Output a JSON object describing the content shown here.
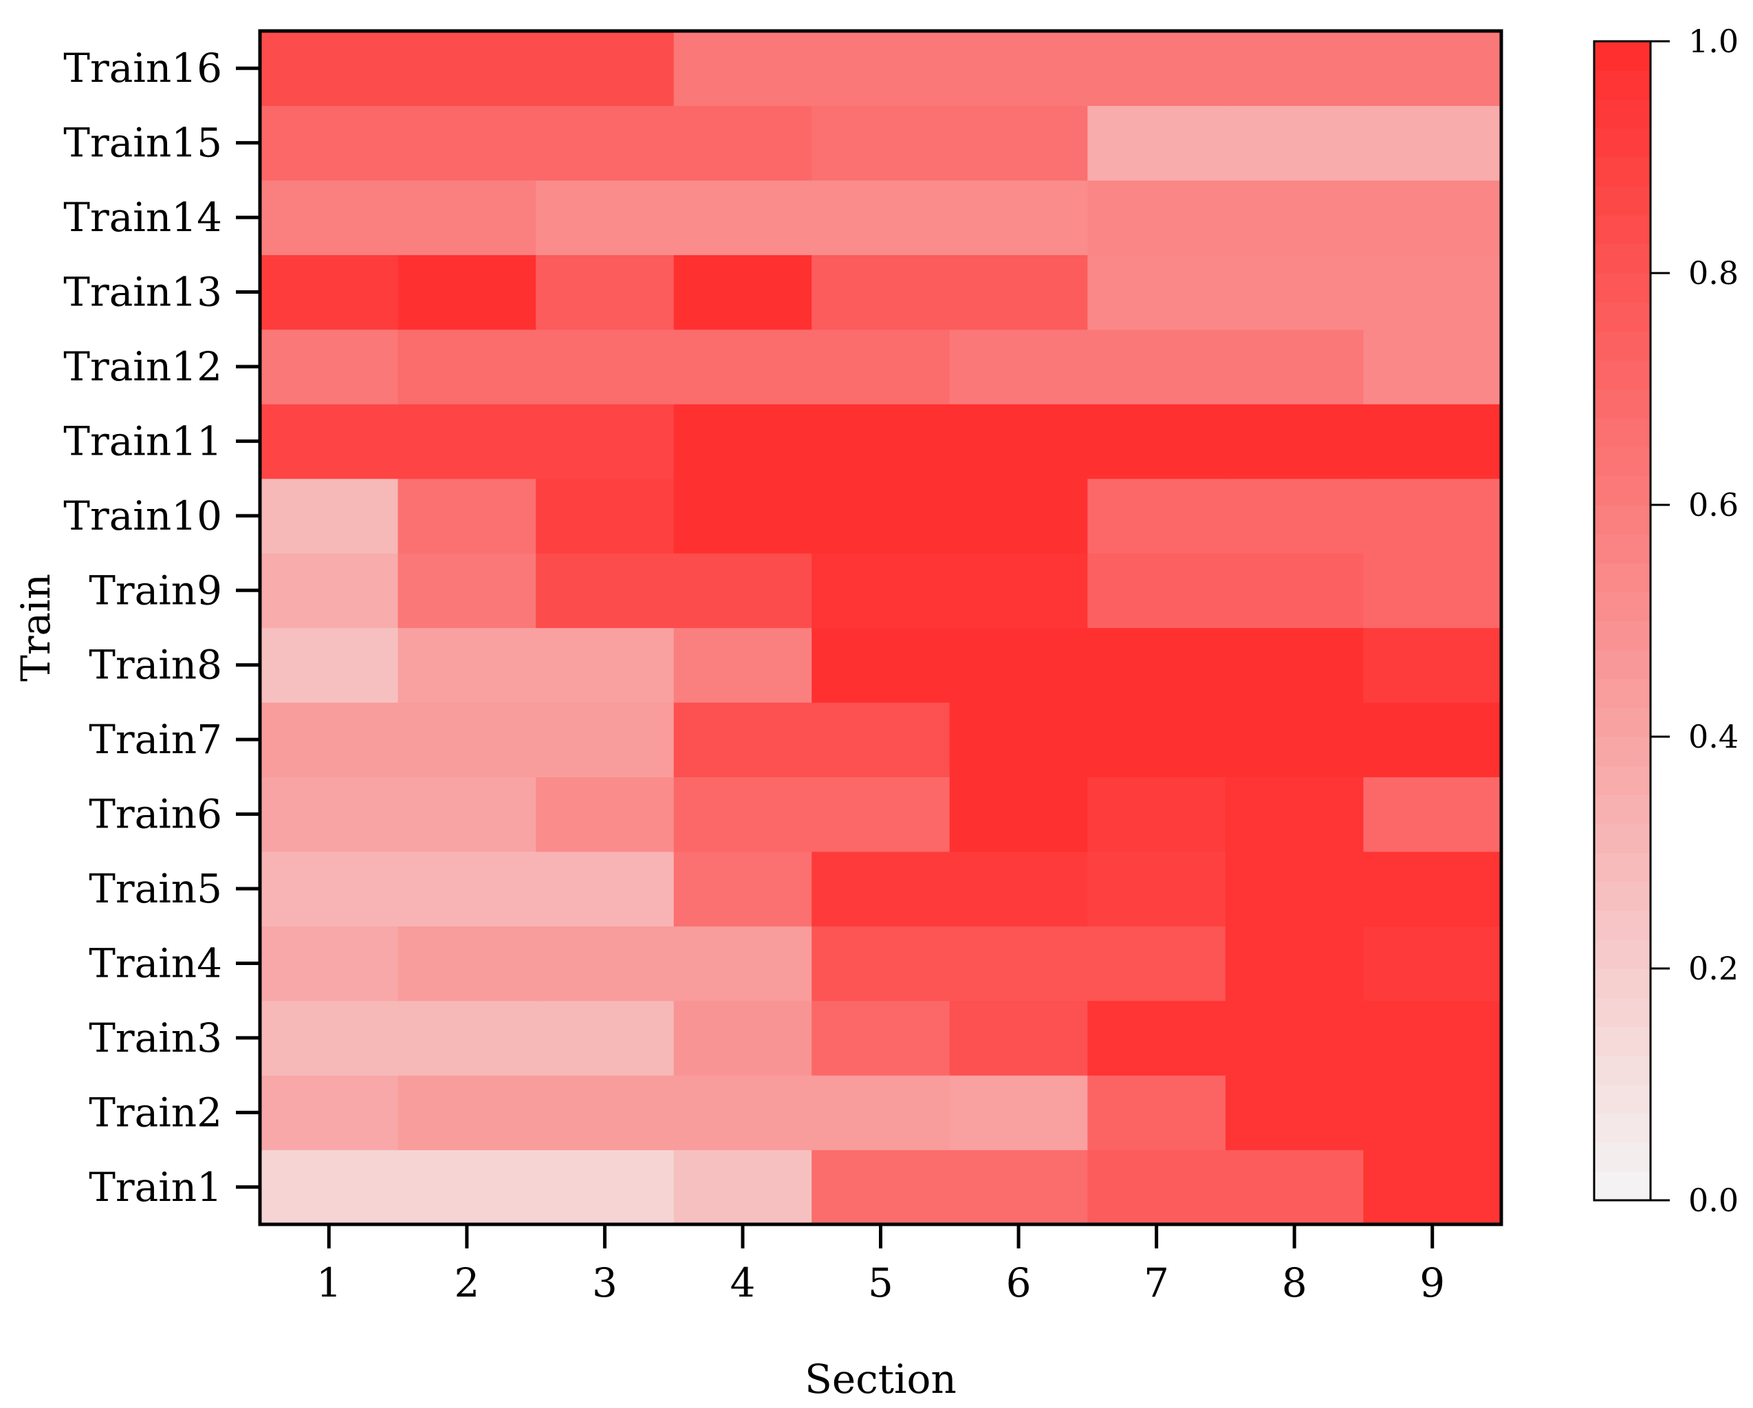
{
  "chart_data": {
    "type": "heatmap",
    "title": "",
    "xlabel": "Section",
    "ylabel": "Train",
    "x_categories": [
      "1",
      "2",
      "3",
      "4",
      "5",
      "6",
      "7",
      "8",
      "9"
    ],
    "y_categories": [
      "Train1",
      "Train2",
      "Train3",
      "Train4",
      "Train5",
      "Train6",
      "Train7",
      "Train8",
      "Train9",
      "Train10",
      "Train11",
      "Train12",
      "Train13",
      "Train14",
      "Train15",
      "Train16"
    ],
    "values": [
      [
        0.16,
        0.16,
        0.16,
        0.26,
        0.68,
        0.68,
        0.76,
        0.76,
        0.96
      ],
      [
        0.38,
        0.44,
        0.44,
        0.44,
        0.44,
        0.42,
        0.72,
        0.96,
        0.96
      ],
      [
        0.3,
        0.3,
        0.3,
        0.48,
        0.7,
        0.82,
        0.96,
        0.96,
        0.96
      ],
      [
        0.38,
        0.44,
        0.44,
        0.44,
        0.8,
        0.8,
        0.8,
        0.96,
        0.93
      ],
      [
        0.32,
        0.32,
        0.32,
        0.66,
        0.93,
        0.93,
        0.9,
        0.96,
        0.96
      ],
      [
        0.4,
        0.4,
        0.52,
        0.7,
        0.7,
        0.98,
        0.92,
        0.96,
        0.7
      ],
      [
        0.44,
        0.44,
        0.44,
        0.82,
        0.82,
        0.98,
        0.98,
        0.98,
        0.98
      ],
      [
        0.26,
        0.42,
        0.42,
        0.58,
        0.98,
        0.98,
        0.98,
        0.98,
        0.92
      ],
      [
        0.36,
        0.62,
        0.84,
        0.84,
        0.96,
        0.96,
        0.74,
        0.74,
        0.7
      ],
      [
        0.3,
        0.66,
        0.9,
        0.98,
        0.98,
        0.98,
        0.7,
        0.7,
        0.7
      ],
      [
        0.88,
        0.88,
        0.88,
        0.98,
        0.98,
        0.98,
        0.98,
        0.98,
        0.98
      ],
      [
        0.62,
        0.68,
        0.68,
        0.68,
        0.68,
        0.62,
        0.62,
        0.62,
        0.54
      ],
      [
        0.92,
        0.98,
        0.76,
        0.98,
        0.76,
        0.76,
        0.54,
        0.54,
        0.54
      ],
      [
        0.58,
        0.58,
        0.52,
        0.52,
        0.52,
        0.52,
        0.55,
        0.55,
        0.55
      ],
      [
        0.7,
        0.7,
        0.7,
        0.7,
        0.66,
        0.66,
        0.36,
        0.36,
        0.36
      ],
      [
        0.84,
        0.84,
        0.84,
        0.62,
        0.62,
        0.62,
        0.62,
        0.62,
        0.62
      ]
    ],
    "colorbar": {
      "min": 0.0,
      "max": 1.0,
      "ticks": [
        0.0,
        0.2,
        0.4,
        0.6,
        0.8,
        1.0
      ],
      "tick_labels": [
        "0.0",
        "0.2",
        "0.4",
        "0.6",
        "0.8",
        "1.0"
      ],
      "levels": 40,
      "color_low": "#f4f4f4",
      "color_high": "#ff2c2c"
    },
    "grid": false,
    "colors": {
      "axis": "#000000"
    }
  }
}
